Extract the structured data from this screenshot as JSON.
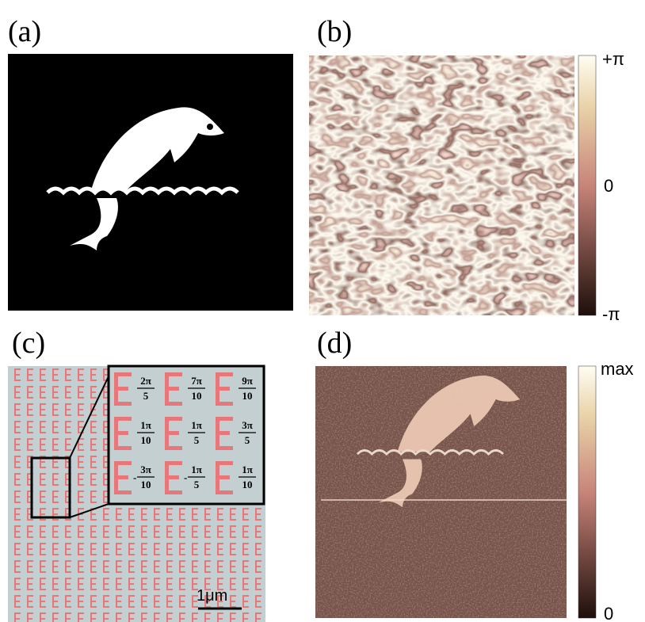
{
  "panels": [
    {
      "label": "(a)"
    },
    {
      "label": "(b)",
      "colorbar": {
        "top": "+π",
        "middle": "0",
        "bottom": "-π"
      }
    },
    {
      "label": "(c)",
      "scale_bar": "1μm",
      "inset": {
        "cells": [
          {
            "numerator": "2π",
            "denominator": "5"
          },
          {
            "numerator": "7π",
            "denominator": "10"
          },
          {
            "numerator": "9π",
            "denominator": "10"
          },
          {
            "numerator": "1π",
            "denominator": "10"
          },
          {
            "numerator": "1π",
            "denominator": "5"
          },
          {
            "numerator": "3π",
            "denominator": "5"
          },
          {
            "sign": "-",
            "numerator": "3π",
            "denominator": "10"
          },
          {
            "sign": "-",
            "numerator": "1π",
            "denominator": "5"
          },
          {
            "numerator": "1π",
            "denominator": "10"
          }
        ]
      }
    },
    {
      "label": "(d)",
      "colorbar": {
        "top": "max",
        "bottom": "0"
      }
    }
  ]
}
